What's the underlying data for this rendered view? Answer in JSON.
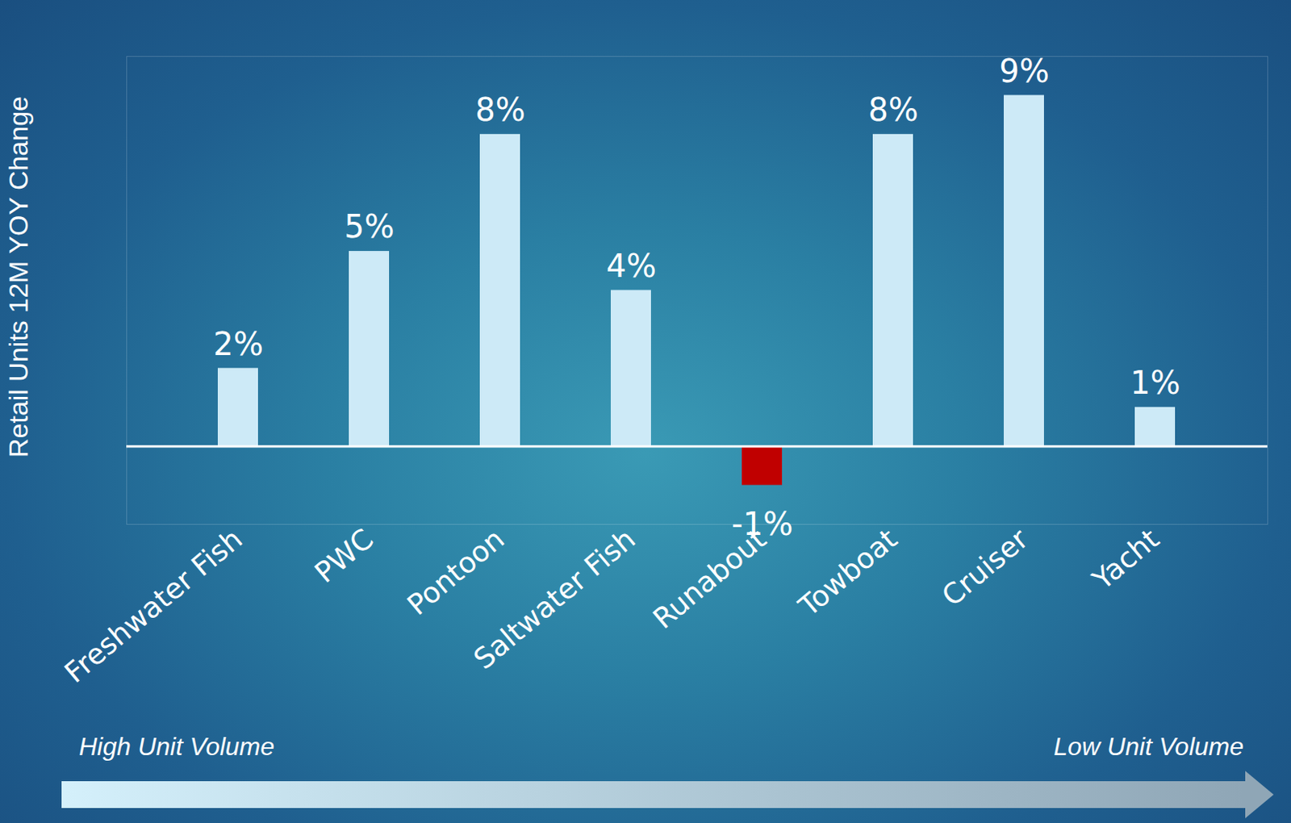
{
  "chart_data": {
    "type": "bar",
    "y_label": "Retail Units 12M YOY Change",
    "categories": [
      "Freshwater Fish",
      "PWC",
      "Pontoon",
      "Saltwater Fish",
      "Runabout",
      "Towboat",
      "Cruiser",
      "Yacht"
    ],
    "values": [
      2,
      5,
      8,
      4,
      -1,
      8,
      9,
      1
    ],
    "value_labels": [
      "2%",
      "5%",
      "8%",
      "4%",
      "-1%",
      "8%",
      "9%",
      "1%"
    ],
    "colors": [
      "#cdeaf7",
      "#cdeaf7",
      "#cdeaf7",
      "#cdeaf7",
      "#c00000",
      "#cdeaf7",
      "#cdeaf7",
      "#cdeaf7"
    ],
    "ylim": [
      -2,
      10
    ],
    "yticks": [],
    "data_labels": true,
    "tick_labels": "x",
    "grid": false,
    "annotations": [
      "High Unit Volume",
      "Low Unit Volume"
    ]
  }
}
